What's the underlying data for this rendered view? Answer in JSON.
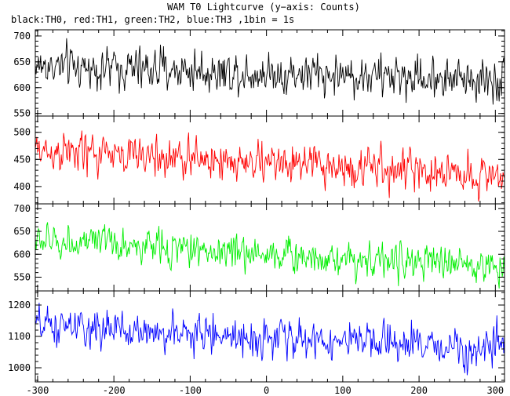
{
  "title": "WAM T0 Lightcurve (y−axis: Counts)",
  "subtitle": "black:TH0, red:TH1, green:TH2, blue:TH3 ,1bin = 1s",
  "chart_data": {
    "type": "line",
    "x_ticks": [
      -300,
      -200,
      -100,
      0,
      100,
      200,
      300
    ],
    "xlim": [
      -303,
      312
    ],
    "panels": [
      {
        "series": "TH0",
        "color": "#000000",
        "ylim": [
          545,
          712
        ],
        "y_ticks": [
          550,
          600,
          650,
          700
        ],
        "mean_start": 642,
        "mean_end": 615,
        "spread": 26
      },
      {
        "series": "TH1",
        "color": "#ff0000",
        "ylim": [
          368,
          530
        ],
        "y_ticks": [
          400,
          450,
          500
        ],
        "mean_start": 466,
        "mean_end": 420,
        "spread": 24
      },
      {
        "series": "TH2",
        "color": "#00ee00",
        "ylim": [
          520,
          710
        ],
        "y_ticks": [
          550,
          600,
          650,
          700
        ],
        "mean_start": 630,
        "mean_end": 572,
        "spread": 24
      },
      {
        "series": "TH3",
        "color": "#0000ff",
        "ylim": [
          955,
          1245
        ],
        "y_ticks": [
          1000,
          1100,
          1200
        ],
        "mean_start": 1132,
        "mean_end": 1058,
        "spread": 38
      }
    ]
  }
}
